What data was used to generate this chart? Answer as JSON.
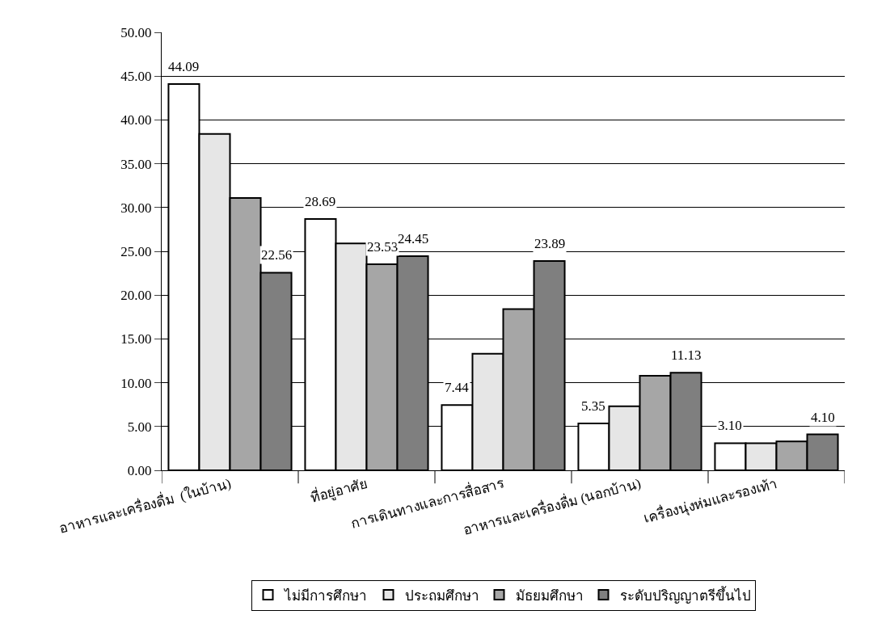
{
  "chart_data": {
    "type": "bar",
    "categories": [
      "อาหารและเครื่องดื่ม  (ในบ้าน)",
      "ที่อยู่อาศัย",
      "การเดินทางและการสื่อสาร",
      "อาหารและเครื่องดื่ม (นอกบ้าน)",
      "เครื่องนุ่งห่มและรองเท้า"
    ],
    "series": [
      {
        "name": "ไม่มีการศึกษา",
        "color": "#ffffff",
        "values": [
          44.09,
          28.69,
          7.44,
          5.35,
          3.1
        ],
        "value_labels": [
          "44.09",
          "28.69",
          "7.44",
          "5.35",
          "3.10"
        ]
      },
      {
        "name": "ประถมศึกษา",
        "color": "#e6e6e6",
        "values": [
          38.4,
          25.9,
          13.3,
          7.3,
          3.1
        ]
      },
      {
        "name": "มัธยมศึกษา",
        "color": "#a6a6a6",
        "values": [
          31.1,
          23.53,
          18.4,
          10.8,
          3.3
        ],
        "value_labels": [
          null,
          "23.53",
          null,
          null,
          null
        ]
      },
      {
        "name": "ระดับปริญญาตรีขึ้นไป",
        "color": "#7f7f7f",
        "values": [
          22.56,
          24.45,
          23.89,
          11.13,
          4.1
        ],
        "value_labels": [
          "22.56",
          "24.45",
          "23.89",
          "11.13",
          "4.10"
        ]
      }
    ],
    "ylim": [
      0,
      50
    ],
    "yticks": [
      {
        "value": 0,
        "label": "0.00"
      },
      {
        "value": 5,
        "label": "5.00"
      },
      {
        "value": 10,
        "label": "10.00"
      },
      {
        "value": 15,
        "label": "15.00"
      },
      {
        "value": 20,
        "label": "20.00"
      },
      {
        "value": 25,
        "label": "25.00"
      },
      {
        "value": 30,
        "label": "30.00"
      },
      {
        "value": 35,
        "label": "35.00"
      },
      {
        "value": 40,
        "label": "40.00"
      },
      {
        "value": 45,
        "label": "45.00"
      },
      {
        "value": 50,
        "label": "50.00"
      }
    ],
    "grid": "y",
    "legend": "bottom"
  }
}
